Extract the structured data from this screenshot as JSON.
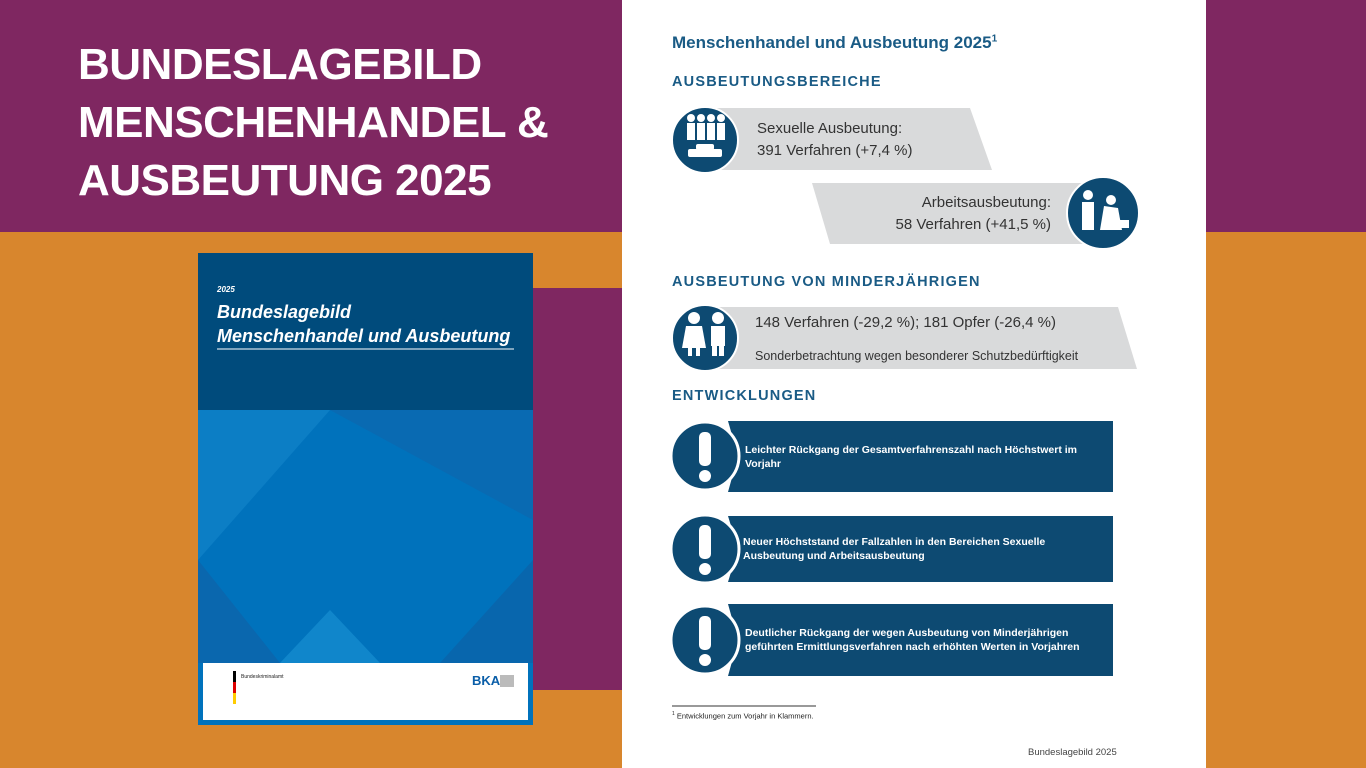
{
  "headline": {
    "lines": [
      "BUNDESLAGEBILD",
      "MENSCHENHANDEL &",
      "AUSBEUTUNG 2025"
    ]
  },
  "cover": {
    "year": "2025",
    "title_lines": [
      "Bundeslagebild",
      "Menschenhandel und Ausbeutung"
    ],
    "agency": "Bundeskriminalamt",
    "logo": "BKA"
  },
  "page": {
    "title": "Menschenhandel und Ausbeutung 2025",
    "title_note": "1",
    "sections": [
      {
        "heading": "AUSBEUTUNGSBEREICHE",
        "items": [
          {
            "label": "Sexuelle Ausbeutung:",
            "detail": "391 Verfahren (+7,4 %)"
          },
          {
            "label": "Arbeitsausbeutung:",
            "detail": "58 Verfahren (+41,5 %)"
          }
        ]
      },
      {
        "heading": "AUSBEUTUNG VON MINDERJÄHRIGEN",
        "items": [
          {
            "label": "148 Verfahren (-29,2 %); 181 Opfer (-26,4 %)",
            "detail": "Sonderbetrachtung wegen besonderer Schutzbedürftigkeit"
          }
        ]
      },
      {
        "heading": "ENTWICKLUNGEN",
        "items": [
          {
            "text": "Leichter Rückgang der Gesamtverfahrenszahl nach Höchstwert im Vorjahr"
          },
          {
            "text": "Neuer Höchststand der Fallzahlen in den Bereichen Sexuelle Ausbeutung und Arbeitsausbeutung"
          },
          {
            "text": "Deutlicher Rückgang der wegen Ausbeutung von Minderjährigen geführten Ermittlungsverfahren nach erhöhten Werten in Vorjahren"
          }
        ]
      }
    ],
    "footnote": {
      "marker": "1",
      "text": "Entwicklungen zum Vorjahr in Klammern."
    },
    "footer": "Bundeslagebild 2025"
  }
}
